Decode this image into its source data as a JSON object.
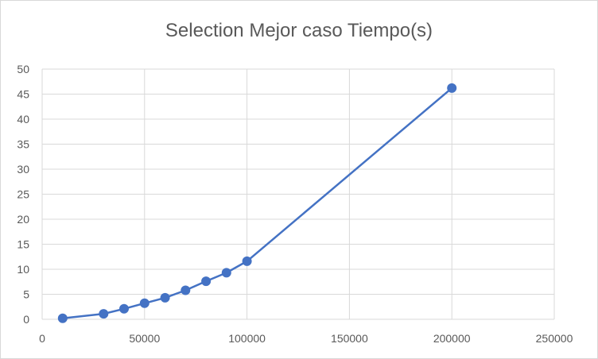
{
  "chart_data": {
    "type": "line",
    "title": "Selection Mejor caso Tiempo(s)",
    "xlabel": "",
    "ylabel": "",
    "xlim": [
      0,
      250000
    ],
    "ylim": [
      0,
      50
    ],
    "x_ticks": [
      0,
      50000,
      100000,
      150000,
      200000,
      250000
    ],
    "y_ticks": [
      0,
      5,
      10,
      15,
      20,
      25,
      30,
      35,
      40,
      45,
      50
    ],
    "grid": true,
    "legend": "none",
    "series_color": "#4472c4",
    "grid_color": "#d9d9d9",
    "series": [
      {
        "x": [
          10000,
          30000,
          40000,
          50000,
          60000,
          70000,
          80000,
          90000,
          100000,
          200000
        ],
        "y": [
          0.2,
          1.1,
          2.1,
          3.2,
          4.3,
          5.8,
          7.6,
          9.3,
          11.6,
          46.2
        ]
      }
    ]
  }
}
